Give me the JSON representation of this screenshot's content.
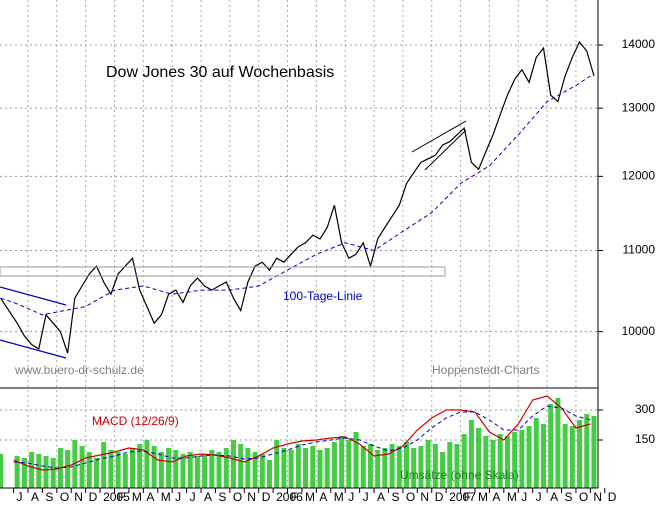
{
  "chart_data": [
    {
      "type": "line",
      "title": "Dow Jones 30 auf Wochenbasis",
      "annotations": [
        {
          "text": "www.buero-dr-schulz.de",
          "color": "#808080"
        },
        {
          "text": "Hoppenstedt-Charts",
          "color": "#808080"
        }
      ],
      "log": true,
      "grid": true,
      "xlim": [
        -0.94,
        40.53
      ],
      "ylim": [
        9360,
        14760
      ],
      "yticks": [
        10000,
        11000,
        12000,
        13000,
        14000
      ],
      "series": [
        {
          "color": "#000000",
          "style": "solid",
          "x": [
            -0.9,
            0.25,
            0.75,
            1.25,
            1.75,
            2.25,
            2.75,
            3.25,
            3.75,
            4.25,
            4.75,
            5.25,
            5.75,
            6.25,
            6.75,
            7.25,
            7.75,
            8.25,
            8.75,
            9.25,
            9.75,
            10.25,
            10.75,
            11.25,
            11.75,
            12.25,
            12.75,
            13.25,
            13.75,
            14.25,
            14.75,
            15.25,
            15.75,
            16.25,
            16.75,
            17.25,
            17.75,
            18.25,
            18.75,
            19.25,
            19.75,
            20.25,
            20.75,
            21.25,
            21.75,
            22.25,
            22.75,
            23.25,
            23.75,
            24.25,
            24.75,
            25.25,
            25.75,
            26.25,
            26.75,
            27.25,
            27.75,
            28.25,
            28.75,
            29.25,
            29.75,
            30.25,
            30.75,
            31.25,
            31.75,
            32.25,
            32.75,
            33.25,
            33.75,
            34.25,
            34.75,
            35.25,
            35.75,
            36.25,
            36.75,
            37.25,
            37.75,
            38.25,
            38.75,
            39.25,
            39.75,
            40.25
          ],
          "values": [
            10400,
            10100,
            9950,
            9850,
            9800,
            10200,
            10100,
            10000,
            9750,
            10400,
            10550,
            10700,
            10800,
            10600,
            10450,
            10700,
            10800,
            10900,
            10500,
            10300,
            10100,
            10200,
            10450,
            10500,
            10350,
            10550,
            10650,
            10550,
            10500,
            10550,
            10600,
            10400,
            10250,
            10600,
            10800,
            10850,
            10750,
            10900,
            10850,
            10950,
            11050,
            11100,
            11200,
            11150,
            11300,
            11600,
            11100,
            10900,
            10950,
            11100,
            10800,
            11150,
            11300,
            11450,
            11600,
            11900,
            12050,
            12200,
            12250,
            12300,
            12450,
            12500,
            12600,
            12700,
            12200,
            12100,
            12350,
            12600,
            12900,
            13200,
            13450,
            13600,
            13400,
            13800,
            13950,
            13200,
            13100,
            13500,
            13800,
            14050,
            13900,
            13500
          ]
        },
        {
          "name": "100-Tage-Linie",
          "color": "#0000cc",
          "style": "dashed",
          "x": [
            -0.9,
            0,
            2,
            5,
            7,
            9,
            11,
            13,
            15,
            17,
            19,
            21,
            23,
            25,
            27,
            29,
            31,
            33,
            35,
            37,
            39,
            40
          ],
          "values": [
            10400,
            10350,
            10200,
            10300,
            10500,
            10550,
            10450,
            10500,
            10500,
            10550,
            10750,
            10950,
            11100,
            11000,
            11250,
            11500,
            11900,
            12150,
            12600,
            13100,
            13350,
            13500
          ]
        }
      ]
    },
    {
      "type": "line",
      "grid": true,
      "xlim": [
        -0.94,
        40.53
      ],
      "ylim": [
        -90,
        400
      ],
      "yticks": [
        150,
        300
      ],
      "xticks": [
        {
          "value": 0,
          "label": "J"
        },
        {
          "value": 1,
          "label": "A"
        },
        {
          "value": 2,
          "label": "S"
        },
        {
          "value": 3,
          "label": "O"
        },
        {
          "value": 4,
          "label": "N"
        },
        {
          "value": 5,
          "label": "D"
        },
        {
          "value": 6,
          "label": "2005"
        },
        {
          "value": 7,
          "label": "F"
        },
        {
          "value": 8,
          "label": "M"
        },
        {
          "value": 9,
          "label": "A"
        },
        {
          "value": 10,
          "label": "M"
        },
        {
          "value": 11,
          "label": "J"
        },
        {
          "value": 12,
          "label": "J"
        },
        {
          "value": 13,
          "label": "A"
        },
        {
          "value": 14,
          "label": "S"
        },
        {
          "value": 15,
          "label": "O"
        },
        {
          "value": 16,
          "label": "N"
        },
        {
          "value": 17,
          "label": "D"
        },
        {
          "value": 18,
          "label": "2006"
        },
        {
          "value": 19,
          "label": "F"
        },
        {
          "value": 20,
          "label": "M"
        },
        {
          "value": 21,
          "label": "A"
        },
        {
          "value": 22,
          "label": "M"
        },
        {
          "value": 23,
          "label": "J"
        },
        {
          "value": 24,
          "label": "J"
        },
        {
          "value": 25,
          "label": "A"
        },
        {
          "value": 26,
          "label": "S"
        },
        {
          "value": 27,
          "label": "O"
        },
        {
          "value": 28,
          "label": "N"
        },
        {
          "value": 29,
          "label": "D"
        },
        {
          "value": 30,
          "label": "2007"
        },
        {
          "value": 31,
          "label": "F"
        },
        {
          "value": 32,
          "label": "M"
        },
        {
          "value": 33,
          "label": "A"
        },
        {
          "value": 34,
          "label": "M"
        },
        {
          "value": 35,
          "label": "J"
        },
        {
          "value": 36,
          "label": "J"
        },
        {
          "value": 37,
          "label": "A"
        },
        {
          "value": 38,
          "label": "S"
        },
        {
          "value": 39,
          "label": "O"
        },
        {
          "value": 40,
          "label": "N"
        },
        {
          "value": 41,
          "label": "D"
        }
      ],
      "series": [
        {
          "name": "Umsätze (ohne Skala)",
          "kind": "bar",
          "color": "#44cc44",
          "label_color": "#208020",
          "x": [
            -0.9,
            0.25,
            0.75,
            1.25,
            1.75,
            2.25,
            2.75,
            3.25,
            3.75,
            4.25,
            4.75,
            5.25,
            5.75,
            6.25,
            6.75,
            7.25,
            7.75,
            8.25,
            8.75,
            9.25,
            9.75,
            10.25,
            10.75,
            11.25,
            11.75,
            12.25,
            12.75,
            13.25,
            13.75,
            14.25,
            14.75,
            15.25,
            15.75,
            16.25,
            16.75,
            17.25,
            17.75,
            18.25,
            18.75,
            19.25,
            19.75,
            20.25,
            20.75,
            21.25,
            21.75,
            22.25,
            22.75,
            23.25,
            23.75,
            24.25,
            24.75,
            25.25,
            25.75,
            26.25,
            26.75,
            27.25,
            27.75,
            28.25,
            28.75,
            29.25,
            29.75,
            30.25,
            30.75,
            31.25,
            31.75,
            32.25,
            32.75,
            33.25,
            33.75,
            34.25,
            34.75,
            35.25,
            35.75,
            36.25,
            36.75,
            37.25,
            37.75,
            38.25,
            38.75,
            39.25,
            39.75,
            40.25
          ],
          "values": [
            80,
            70,
            60,
            90,
            80,
            70,
            60,
            110,
            100,
            150,
            120,
            90,
            60,
            140,
            100,
            90,
            80,
            110,
            130,
            150,
            120,
            90,
            110,
            100,
            80,
            90,
            70,
            80,
            100,
            90,
            110,
            150,
            130,
            110,
            90,
            80,
            50,
            150,
            110,
            100,
            130,
            110,
            120,
            100,
            110,
            140,
            170,
            150,
            190,
            120,
            130,
            100,
            110,
            130,
            120,
            140,
            110,
            120,
            150,
            130,
            90,
            140,
            130,
            180,
            250,
            210,
            170,
            150,
            180,
            170,
            190,
            200,
            220,
            260,
            230,
            330,
            360,
            230,
            220,
            250,
            280,
            270
          ]
        },
        {
          "name": "MACD (12/26/9)",
          "kind": "line",
          "color": "#d00000",
          "style": "solid",
          "x": [
            0,
            1,
            2,
            3,
            4,
            5,
            6,
            7,
            8,
            9,
            10,
            11,
            12,
            13,
            14,
            15,
            16,
            17,
            18,
            19,
            20,
            21,
            22,
            23,
            24,
            25,
            26,
            27,
            28,
            29,
            30,
            31,
            32,
            33,
            34,
            35,
            36,
            37,
            38,
            39,
            40
          ],
          "values": [
            50,
            20,
            0,
            5,
            25,
            60,
            75,
            90,
            110,
            100,
            50,
            40,
            70,
            80,
            75,
            60,
            40,
            70,
            110,
            130,
            145,
            150,
            160,
            165,
            130,
            70,
            80,
            120,
            200,
            260,
            300,
            300,
            290,
            190,
            150,
            230,
            350,
            370,
            310,
            210,
            230
          ]
        },
        {
          "kind": "line",
          "color": "#0000cc",
          "style": "dashed",
          "x": [
            0,
            1,
            2,
            3,
            4,
            5,
            6,
            7,
            8,
            9,
            10,
            11,
            12,
            13,
            14,
            15,
            16,
            17,
            18,
            19,
            20,
            21,
            22,
            23,
            24,
            25,
            26,
            27,
            28,
            29,
            30,
            31,
            32,
            33,
            34,
            35,
            36,
            37,
            38,
            39,
            40
          ],
          "values": [
            40,
            35,
            20,
            10,
            15,
            35,
            55,
            70,
            90,
            95,
            80,
            60,
            60,
            70,
            75,
            70,
            55,
            60,
            80,
            100,
            125,
            140,
            150,
            160,
            150,
            120,
            95,
            110,
            150,
            210,
            260,
            290,
            290,
            250,
            200,
            200,
            270,
            320,
            310,
            270,
            250
          ]
        }
      ]
    }
  ]
}
